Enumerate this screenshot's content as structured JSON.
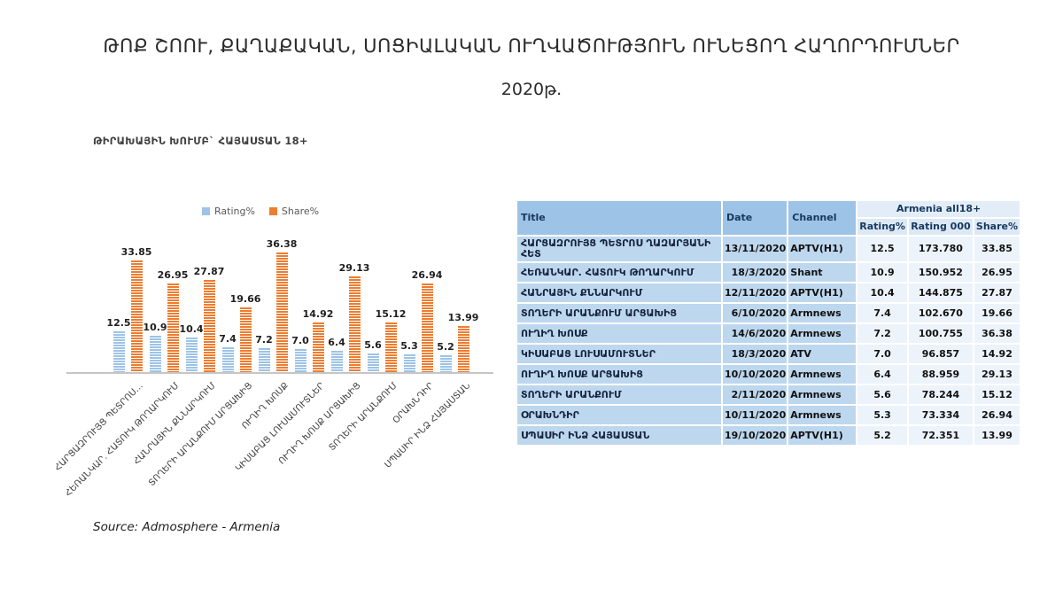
{
  "slide": {
    "title": "ԹՈՔ  ՇՈՈՒ, ՔԱՂԱՔԱԿԱՆ, ՍՈՑԻԱԼԱԿԱՆ ՈՒՂՎԱԾՈՒԹՅՈՒՆ ՈՒՆԵՑՈՂ ՀԱՂՈՐԴՈՒՄՆԵՐ",
    "subtitle": "2020թ.",
    "target_group": "ԹԻՐԱԽԱՅԻՆ ԽՈՒՄԲ` ՀԱՅԱՍՏԱՆ 18+",
    "source": "Source: Admosphere - Armenia"
  },
  "chart_data": {
    "type": "bar",
    "legend_position": "top",
    "grid": false,
    "data_labels": true,
    "ylim": [
      0,
      40
    ],
    "categories": [
      "ՀԱՐՑԱԶՐՈՒՅՑ ՊԵՏՐՈՍ…",
      "ՀԵՌԱՆԿԱՐ. ՀԱՏՈՒԿ ԹՈՂԱՐԿՈՒՄ",
      "ՀԱՆՐԱՅԻՆ ՔՆՆԱՐԿՈՒՄ",
      "ՏՈՂԵՐԻ ԱՐԱՆՔՈՒՄ ԱՐՑԱԽԻՑ",
      "ՈՒՂԻՂ ԽՈՍՔ",
      "ԿԻՍԱԲԱՑ ԼՈՒՍԱՄՈՒՏՆԵՐ",
      "ՈՒՂԻՂ ԽՈՍՔ ԱՐՑԱԽԻՑ",
      "ՏՈՂԵՐԻ ԱՐԱՆՔՈՒՄ",
      "ՕՐԱԽՆԴԻՐ",
      "ՍՊԱՍԻՐ ԻՆՁ ՀԱՅԱՍՏԱՆ"
    ],
    "series": [
      {
        "name": "Rating%",
        "color": "#9DC3E6",
        "values": [
          12.5,
          10.9,
          10.4,
          7.4,
          7.2,
          7.0,
          6.4,
          5.6,
          5.3,
          5.2
        ]
      },
      {
        "name": "Share%",
        "color": "#ED7D31",
        "values": [
          33.85,
          26.95,
          27.87,
          19.66,
          36.38,
          14.92,
          29.13,
          15.12,
          26.94,
          13.99
        ]
      }
    ],
    "value_label_format": {
      "Rating%": 1,
      "Share%": 2
    }
  },
  "table": {
    "headers": {
      "title": "Title",
      "date": "Date",
      "channel": "Channel",
      "group": "Armenia all18+",
      "sub": [
        "Rating%",
        "Rating 000",
        "Share%"
      ]
    },
    "rows": [
      {
        "title": "ՀԱՐՑԱԶՐՈՒՅՑ ՊԵՏՐՈՍ ՂԱԶԱՐՅԱՆԻ ՀԵՏ",
        "date": "13/11/2020",
        "channel": "APTV(H1)",
        "rating": "12.5",
        "rating000": "173.780",
        "share": "33.85"
      },
      {
        "title": "ՀԵՌԱՆԿԱՐ. ՀԱՏՈՒԿ ԹՈՂԱՐԿՈՒՄ",
        "date": "18/3/2020",
        "channel": "Shant",
        "rating": "10.9",
        "rating000": "150.952",
        "share": "26.95"
      },
      {
        "title": "ՀԱՆՐԱՅԻՆ ՔՆՆԱՐԿՈՒՄ",
        "date": "12/11/2020",
        "channel": "APTV(H1)",
        "rating": "10.4",
        "rating000": "144.875",
        "share": "27.87"
      },
      {
        "title": "ՏՈՂԵՐԻ ԱՐԱՆՔՈՒՄ ԱՐՑԱԽԻՑ",
        "date": "6/10/2020",
        "channel": "Armnews",
        "rating": "7.4",
        "rating000": "102.670",
        "share": "19.66"
      },
      {
        "title": "ՈՒՂԻՂ ԽՈՍՔ",
        "date": "14/6/2020",
        "channel": "Armnews",
        "rating": "7.2",
        "rating000": "100.755",
        "share": "36.38"
      },
      {
        "title": "ԿԻՍԱԲԱՑ ԼՈՒՍԱՄՈՒՏՆԵՐ",
        "date": "18/3/2020",
        "channel": "ATV",
        "rating": "7.0",
        "rating000": "96.857",
        "share": "14.92"
      },
      {
        "title": "ՈՒՂԻՂ ԽՈՍՔ ԱՐՑԱԽԻՑ",
        "date": "10/10/2020",
        "channel": "Armnews",
        "rating": "6.4",
        "rating000": "88.959",
        "share": "29.13"
      },
      {
        "title": "ՏՈՂԵՐԻ ԱՐԱՆՔՈՒՄ",
        "date": "2/11/2020",
        "channel": "Armnews",
        "rating": "5.6",
        "rating000": "78.244",
        "share": "15.12"
      },
      {
        "title": "ՕՐԱԽՆԴԻՐ",
        "date": "10/11/2020",
        "channel": "Armnews",
        "rating": "5.3",
        "rating000": "73.334",
        "share": "26.94"
      },
      {
        "title": "ՍՊԱՍԻՐ ԻՆՁ ՀԱՅԱՍՏԱՆ",
        "date": "19/10/2020",
        "channel": "APTV(H1)",
        "rating": "5.2",
        "rating000": "72.351",
        "share": "13.99"
      }
    ]
  },
  "colors": {
    "rating_bar": "#9DC3E6",
    "share_bar": "#ED7D31",
    "table_header": "#9DC3E6",
    "table_row": "#BDD7EE",
    "table_value_cell": "#EDF3FA",
    "header_text": "#17375E",
    "axis_line": "#C6C6C6"
  }
}
